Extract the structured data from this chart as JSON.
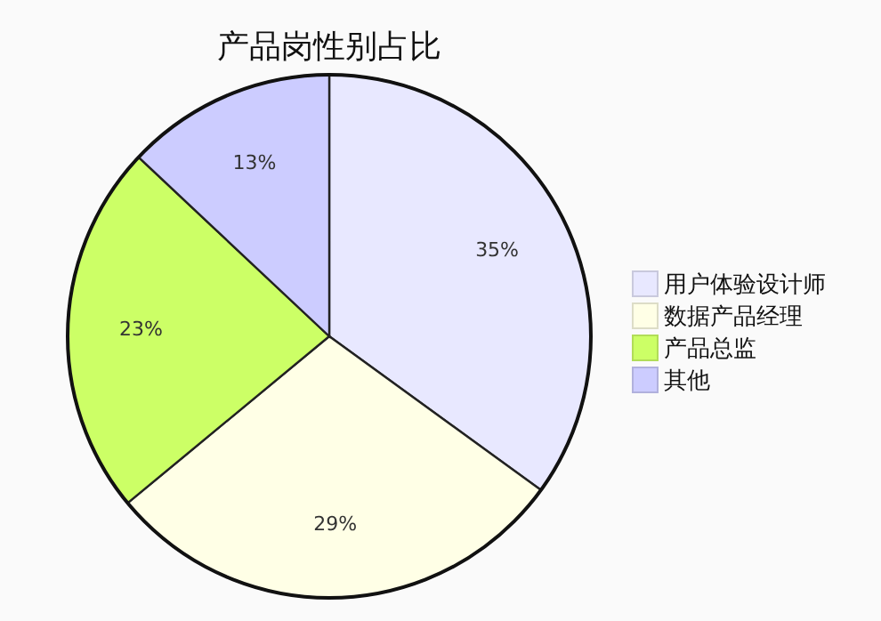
{
  "chart_data": {
    "type": "pie",
    "title": "产品岗性别占比",
    "categories": [
      "用户体验设计师",
      "数据产品经理",
      "产品总监",
      "其他"
    ],
    "values": [
      35,
      29,
      23,
      13
    ],
    "colors": [
      "#e8e8ff",
      "#ffffe6",
      "#ccff66",
      "#ccccff"
    ],
    "value_labels": [
      "35%",
      "29%",
      "23%",
      "13%"
    ],
    "legend": "right"
  }
}
